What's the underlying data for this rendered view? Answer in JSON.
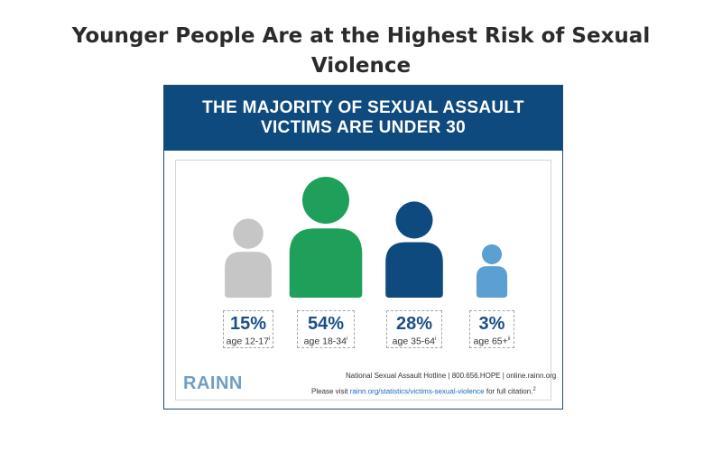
{
  "page": {
    "title": "Younger People Are at the Highest Risk of Sexual Violence"
  },
  "infographic": {
    "banner_line1": "THE MAJORITY OF SEXUAL ASSAULT",
    "banner_line2": "VICTIMS ARE UNDER 30",
    "logo": "RAINN",
    "footer_line1": "National Sexual Assault Hotline | 800.656.HOPE | online.rainn.org",
    "footer_line2_prefix": "Please visit ",
    "footer_line2_link": "rainn.org/statistics/victims-sexual-violence",
    "footer_line2_suffix": " for full citation.",
    "footer_line2_sup": "2"
  },
  "chart_data": {
    "type": "bar",
    "title": "THE MAJORITY OF SEXUAL ASSAULT VICTIMS ARE UNDER 30",
    "categories": [
      "age 12-17",
      "age 18-34",
      "age 35-64",
      "age 65+"
    ],
    "values": [
      15,
      54,
      28,
      3
    ],
    "value_labels": [
      "15%",
      "54%",
      "28%",
      "3%"
    ],
    "footnote_marks": [
      "i",
      "i",
      "i",
      "ii"
    ],
    "unit": "%",
    "colors": [
      "#c6c6c6",
      "#1fa05a",
      "#0f4a7e",
      "#5b9fd3"
    ],
    "representation": "person pictograms sized by value"
  }
}
